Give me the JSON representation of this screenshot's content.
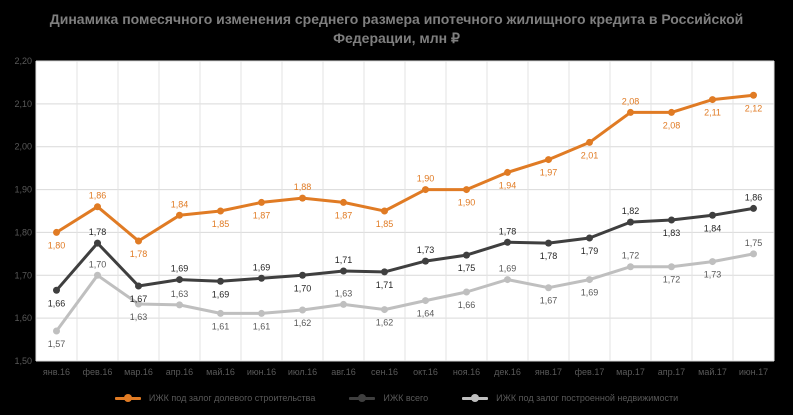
{
  "chart_data": {
    "type": "line",
    "title": "Динамика помесячного изменения среднего размера ипотечного жилищного кредита в Российской Федерации, млн ₽",
    "categories": [
      "янв.16",
      "фев.16",
      "мар.16",
      "апр.16",
      "май.16",
      "июн.16",
      "июл.16",
      "авг.16",
      "сен.16",
      "окт.16",
      "ноя.16",
      "дек.16",
      "янв.17",
      "фев.17",
      "мар.17",
      "апр.17",
      "май.17",
      "июн.17"
    ],
    "ylim": [
      1.5,
      2.2
    ],
    "yticks": [
      "1,50",
      "1,60",
      "1,70",
      "1,80",
      "1,90",
      "2,00",
      "2,10",
      "2,20"
    ],
    "grid": true,
    "legend_position": "bottom",
    "series": [
      {
        "name": "ИЖК под залог долевого строительства",
        "color": "#e07b24",
        "values": [
          1.8,
          1.86,
          1.78,
          1.84,
          1.85,
          1.87,
          1.88,
          1.87,
          1.85,
          1.9,
          1.9,
          1.94,
          1.97,
          2.01,
          2.08,
          2.08,
          2.11,
          2.12
        ],
        "labels": [
          "1,80",
          "1,86",
          "1,78",
          "1,84",
          "1,85",
          "1,87",
          "1,88",
          "1,87",
          "1,85",
          "1,90",
          "1,90",
          "1,94",
          "1,97",
          "2,01",
          "2,08",
          "2,08",
          "2,11",
          "2,12"
        ],
        "label_pos": [
          "below",
          "above",
          "below",
          "above",
          "below",
          "below",
          "above",
          "below",
          "below",
          "above",
          "below",
          "below",
          "below",
          "below",
          "above",
          "below",
          "below",
          "below"
        ]
      },
      {
        "name": "ИЖК всего",
        "color": "#3f3f3f",
        "values": [
          1.665,
          1.775,
          1.675,
          1.69,
          1.686,
          1.693,
          1.7,
          1.71,
          1.708,
          1.733,
          1.747,
          1.777,
          1.775,
          1.787,
          1.824,
          1.829,
          1.84,
          1.856
        ],
        "labels": [
          "1,66",
          "1,78",
          "1,67",
          "1,69",
          "1,69",
          "1,69",
          "1,70",
          "1,71",
          "1,71",
          "1,73",
          "1,75",
          "1,78",
          "1,78",
          "1,79",
          "1,82",
          "1,83",
          "1,84",
          "1,86"
        ],
        "label_pos": [
          "below",
          "above",
          "below",
          "above",
          "below",
          "above",
          "below",
          "above",
          "below",
          "above",
          "below",
          "above",
          "below",
          "below",
          "above",
          "below",
          "below",
          "above"
        ]
      },
      {
        "name": "ИЖК под залог построенной недвижимости",
        "color": "#bfbfbf",
        "values": [
          1.57,
          1.7,
          1.633,
          1.631,
          1.611,
          1.611,
          1.619,
          1.632,
          1.62,
          1.641,
          1.661,
          1.69,
          1.671,
          1.69,
          1.72,
          1.72,
          1.732,
          1.75
        ],
        "labels": [
          "1,57",
          "1,70",
          "1,63",
          "1,63",
          "1,61",
          "1,61",
          "1,62",
          "1,63",
          "1,62",
          "1,64",
          "1,66",
          "1,69",
          "1,67",
          "1,69",
          "1,72",
          "1,72",
          "1,73",
          "1,75"
        ],
        "label_pos": [
          "below",
          "above",
          "below",
          "above",
          "below",
          "below",
          "below",
          "above",
          "below",
          "below",
          "below",
          "above",
          "below",
          "below",
          "above",
          "below",
          "below",
          "above"
        ]
      }
    ]
  }
}
